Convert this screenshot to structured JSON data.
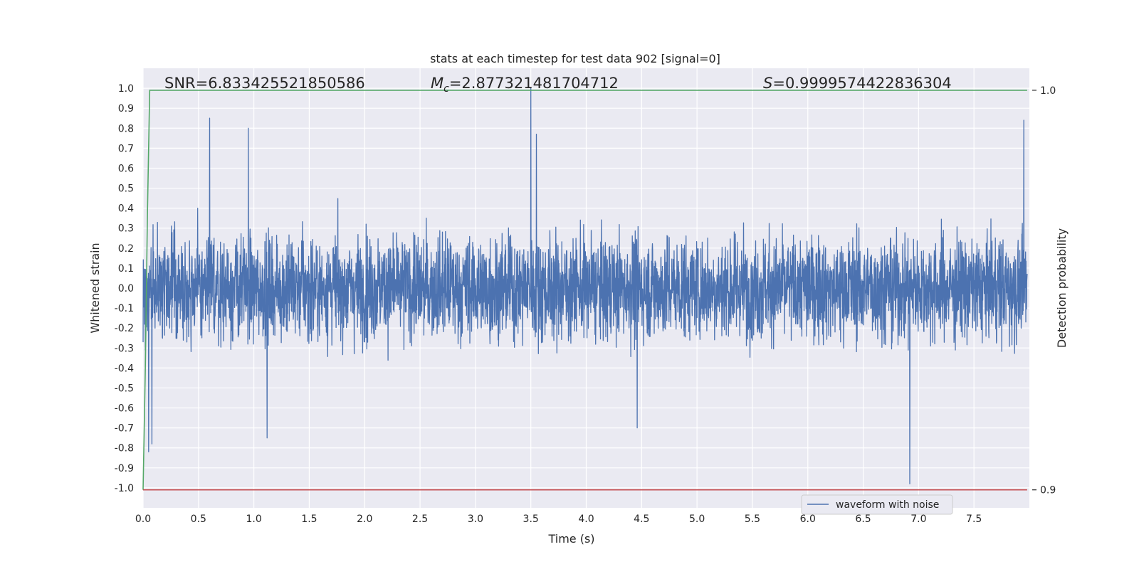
{
  "chart_data": {
    "type": "line",
    "title": "stats at each timestep for test data 902 [signal=0]",
    "xlabel": "Time (s)",
    "ylabel": "Whitened strain",
    "ylabel_right": "Detection probability",
    "xlim": [
      0.0,
      8.0
    ],
    "ylim": [
      -1.1,
      1.1
    ],
    "ylim_right": [
      0.8955,
      1.0055
    ],
    "x_ticks": [
      "0.0",
      "0.5",
      "1.0",
      "1.5",
      "2.0",
      "2.5",
      "3.0",
      "3.5",
      "4.0",
      "4.5",
      "5.0",
      "5.5",
      "6.0",
      "6.5",
      "7.0",
      "7.5"
    ],
    "y_ticks": [
      "1.0",
      "0.9",
      "0.8",
      "0.7",
      "0.6",
      "0.5",
      "0.4",
      "0.3",
      "0.2",
      "0.1",
      "0.0",
      "-0.1",
      "-0.2",
      "-0.3",
      "-0.4",
      "-0.5",
      "-0.6",
      "-0.7",
      "-0.8",
      "-0.9",
      "-1.0"
    ],
    "y_ticks_right": [
      "1.0",
      "0.9"
    ],
    "grid": true,
    "legend_position": "lower-right",
    "annotations": {
      "snr": "SNR=6.833425521850586",
      "mc_prefix": "M",
      "mc_sub": "c",
      "mc_value": "=2.877321481704712",
      "s_prefix": "S",
      "s_value": "=0.9999574422836304"
    },
    "series": [
      {
        "name": "waveform with noise",
        "axis": "left",
        "color": "#4c72b0",
        "description_values": {
          "x_range": [
            0.0,
            7.98
          ],
          "typical_amplitude": 0.4,
          "notable_peaks": [
            {
              "x": 0.05,
              "y": -0.82
            },
            {
              "x": 0.08,
              "y": -0.78
            },
            {
              "x": 0.6,
              "y": 0.85
            },
            {
              "x": 0.95,
              "y": 0.8
            },
            {
              "x": 1.12,
              "y": -0.75
            },
            {
              "x": 3.5,
              "y": 1.0
            },
            {
              "x": 3.55,
              "y": 0.77
            },
            {
              "x": 4.46,
              "y": -0.7
            },
            {
              "x": 6.92,
              "y": -0.98
            },
            {
              "x": 7.95,
              "y": 0.84
            }
          ]
        }
      },
      {
        "name": "",
        "axis": "right",
        "color": "#55a868",
        "x": [
          0.0,
          0.02,
          0.04,
          0.06,
          0.1,
          7.98
        ],
        "y": [
          0.9,
          0.93,
          0.97,
          1.0,
          1.0,
          1.0
        ]
      },
      {
        "name": "",
        "axis": "right",
        "color": "#c44e52",
        "x": [
          0.0,
          7.98
        ],
        "y": [
          0.9,
          0.9
        ]
      }
    ]
  }
}
